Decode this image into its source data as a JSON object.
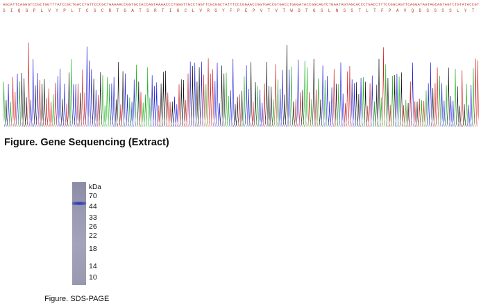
{
  "sequencing": {
    "dna": "AGCATTCAGGGTCCGCTGGTTTATCCGCTGACCTGTTCCCGCTGAAAACCGGTGCCACCAGTAAAACCCTGGGTTGCCTGGTTCGCGGCTATTTCCCGGAACCGGTGACCGTGACCTGGGATACCGGCAGTCTGAATAGTAGCACCCTGACCTTTCCGGCAGTTCAGGATAGTAGCAGTAGTCTGTATACCGTTACCAGCCAGGTGACCATT",
    "amino_acids": "SIQGPLVYPLTCSCRTGATSRTIGCLVRGYFPEPVTVTWDTGSLNSSTLTFPAVQDSSSSLYTVTSQVTI",
    "title": "Figure. Gene Sequencing (Extract)",
    "trace_colors": {
      "A": "#1fb01f",
      "C": "#2020d8",
      "G": "#111111",
      "T": "#d02020"
    }
  },
  "gel": {
    "unit": "kDa",
    "markers": [
      "70",
      "44",
      "33",
      "26",
      "22",
      "18",
      "14",
      "10"
    ],
    "band_color": "#2f3aa8",
    "caption": "Figure. SDS-PAGE"
  }
}
